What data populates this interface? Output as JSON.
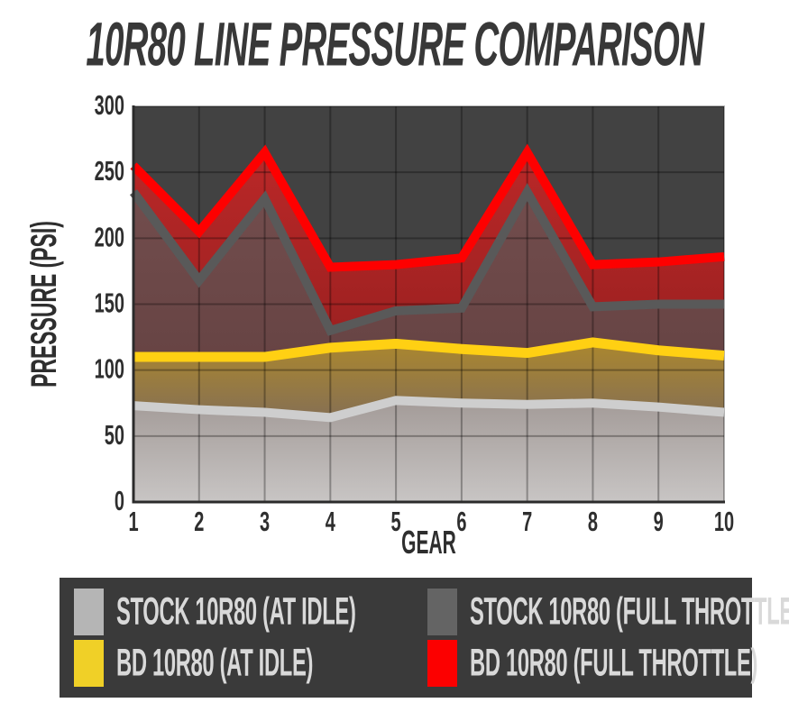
{
  "title": "10R80 LINE PRESSURE COMPARISON",
  "axis": {
    "xlabel": "GEAR",
    "ylabel": "PRESSURE (PSI)"
  },
  "colors": {
    "page_bg": "#ffffff",
    "title_text": "#383838",
    "plot_bg": "#424242",
    "grid_line": "rgba(0,0,0,0.30)",
    "axis_line": "#2b2b2b",
    "tick_text": "#2e2e2e",
    "legend_bg": "#3a3a3a",
    "legend_text": "#d9d9d9"
  },
  "chart_data": {
    "type": "area",
    "title": "10R80 LINE PRESSURE COMPARISON",
    "xlabel": "GEAR",
    "ylabel": "PRESSURE (PSI)",
    "x": [
      1,
      2,
      3,
      4,
      5,
      6,
      7,
      8,
      9,
      10
    ],
    "xticks": [
      "1",
      "2",
      "3",
      "4",
      "5",
      "6",
      "7",
      "8",
      "9",
      "10"
    ],
    "yticks": [
      0,
      50,
      100,
      150,
      200,
      250,
      300
    ],
    "ylim": [
      0,
      300
    ],
    "grid": true,
    "legend_position": "bottom",
    "series": [
      {
        "name": "STOCK 10R80 (AT IDLE)",
        "color": "#cecece",
        "line_width": 10,
        "values": [
          73,
          70,
          68,
          64,
          77,
          75,
          74,
          75,
          72,
          68
        ]
      },
      {
        "name": "BD 10R80 (AT IDLE)",
        "color": "#ffd013",
        "line_width": 11,
        "values": [
          110,
          110,
          110,
          117,
          120,
          116,
          113,
          121,
          115,
          111
        ]
      },
      {
        "name": "STOCK 10R80 (FULL THROTTLE)",
        "color": "#595959",
        "line_width": 10,
        "values": [
          235,
          168,
          230,
          130,
          145,
          147,
          235,
          148,
          150,
          150
        ]
      },
      {
        "name": "BD 10R80 (FULL THROTTLE)",
        "color": "#fe0000",
        "line_width": 10,
        "values": [
          255,
          205,
          265,
          178,
          180,
          185,
          265,
          180,
          182,
          186
        ]
      }
    ],
    "fills": [
      {
        "upper": 0,
        "lower": null,
        "top_color": "#a39b98",
        "bottom_color": "#c8c5c4"
      },
      {
        "upper": 1,
        "lower": 0,
        "top_color": "#ab872e",
        "bottom_color": "#867053"
      },
      {
        "upper": 2,
        "lower": 1,
        "top_color": "#724d4d",
        "bottom_color": "#674444"
      },
      {
        "upper": 3,
        "lower": 2,
        "top_color": "#ba2828",
        "bottom_color": "#9e2121"
      }
    ]
  },
  "legend": {
    "items": [
      {
        "label": "STOCK 10R80 (AT IDLE)",
        "color": "#b5b5b5"
      },
      {
        "label": "STOCK 10R80 (FULL THROTTLE)",
        "color": "#646464"
      },
      {
        "label": "BD 10R80 (AT IDLE)",
        "color": "#f0d027"
      },
      {
        "label": "BD 10R80 (FULL THROTTLE)",
        "color": "#fc0000"
      }
    ]
  }
}
